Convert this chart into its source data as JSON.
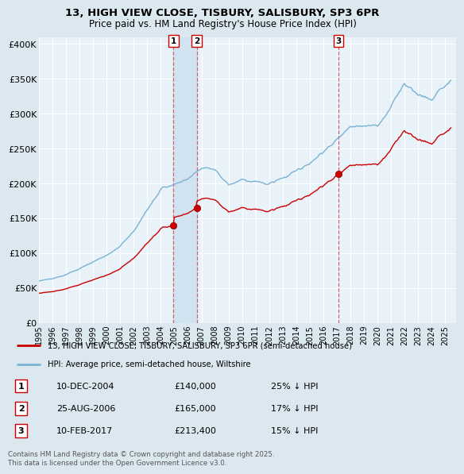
{
  "title_line1": "13, HIGH VIEW CLOSE, TISBURY, SALISBURY, SP3 6PR",
  "title_line2": "Price paid vs. HM Land Registry's House Price Index (HPI)",
  "ylabel_ticks": [
    "£0",
    "£50K",
    "£100K",
    "£150K",
    "£200K",
    "£250K",
    "£300K",
    "£350K",
    "£400K"
  ],
  "ytick_values": [
    0,
    50000,
    100000,
    150000,
    200000,
    250000,
    300000,
    350000,
    400000
  ],
  "ylim": [
    0,
    410000
  ],
  "xlim_start": 1995.0,
  "xlim_end": 2025.8,
  "hpi_color": "#7ab3d4",
  "price_color": "#cc0000",
  "bg_color": "#dce8f0",
  "plot_bg_color": "#e8f2f8",
  "grid_color": "#ffffff",
  "shade_color": "#cce0f0",
  "legend_label_price": "13, HIGH VIEW CLOSE, TISBURY, SALISBURY, SP3 6PR (semi-detached house)",
  "legend_label_hpi": "HPI: Average price, semi-detached house, Wiltshire",
  "sale1_date": "10-DEC-2004",
  "sale1_price": "£140,000",
  "sale1_hpi": "25% ↓ HPI",
  "sale1_x": 2004.94,
  "sale1_y": 140000,
  "sale2_date": "25-AUG-2006",
  "sale2_price": "£165,000",
  "sale2_hpi": "17% ↓ HPI",
  "sale2_x": 2006.65,
  "sale2_y": 165000,
  "sale3_date": "10-FEB-2017",
  "sale3_price": "£213,400",
  "sale3_hpi": "15% ↓ HPI",
  "sale3_x": 2017.11,
  "sale3_y": 213400,
  "footer": "Contains HM Land Registry data © Crown copyright and database right 2025.\nThis data is licensed under the Open Government Licence v3.0."
}
